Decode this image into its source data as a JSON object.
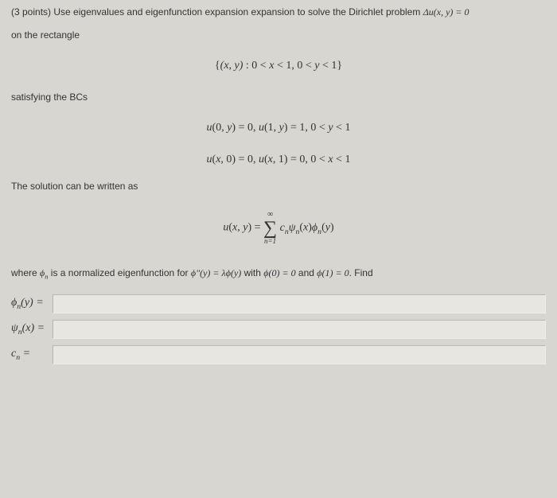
{
  "question": {
    "points": "(3 points)",
    "intro": "Use eigenvalues and eigenfunction expansion expansion to solve the Dirichlet problem",
    "equation": "Δu(x, y) = 0",
    "rectangle_text": "on the rectangle",
    "domain": "{(x, y) : 0 < x < 1,  0 < y < 1}",
    "bc_text": "satisfying the BCs",
    "bc1": "u(0, y) = 0,  u(1, y) = 1,  0 < y < 1",
    "bc2": "u(x, 0) = 0,  u(x, 1) = 0,  0 < x < 1",
    "solution_text": "The solution can be written as",
    "solution_formula": "u(x, y) = ",
    "sum_top": "∞",
    "sum_bottom": "n=1",
    "sum_expr": "cₙψₙ(x)ϕₙ(y)",
    "where_text_1": "where ",
    "where_phi": "ϕₙ",
    "where_text_2": " is a normalized eigenfunction for ",
    "where_eq": "ϕ″(y) = λϕ(y)",
    "where_text_3": " with ",
    "where_bc1": "ϕ(0) = 0",
    "where_text_4": " and ",
    "where_bc2": "ϕ(1) = 0",
    "where_text_5": ". Find"
  },
  "answers": {
    "phi_label": "ϕₙ(y) =",
    "psi_label": "ψₙ(x) =",
    "c_label": "cₙ =",
    "phi_value": "",
    "psi_value": "",
    "c_value": ""
  },
  "colors": {
    "background": "#d8d6d0",
    "input_bg": "#e8e6e0",
    "text": "#333333"
  }
}
